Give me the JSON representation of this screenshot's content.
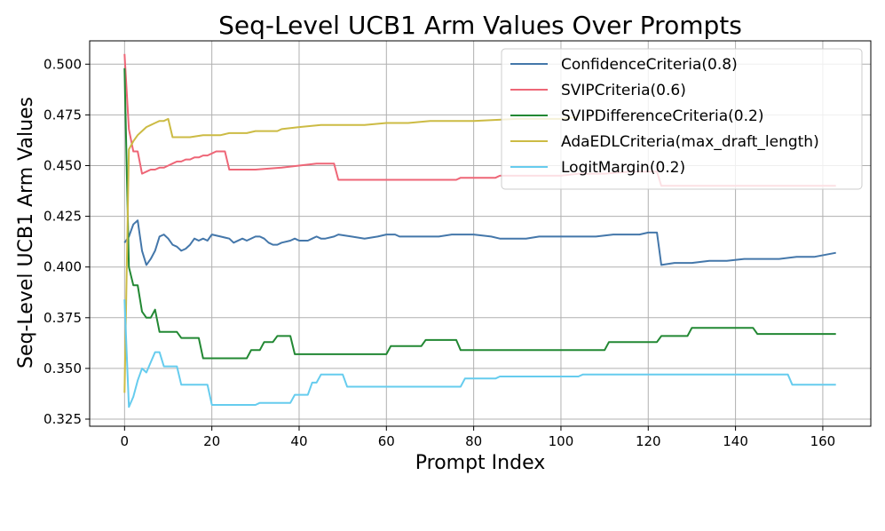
{
  "chart_data": {
    "type": "line",
    "title": "Seq-Level UCB1 Arm Values Over Prompts",
    "xlabel": "Prompt Index",
    "ylabel": "Seq-Level UCB1 Arm Values",
    "xlim": [
      -8,
      171
    ],
    "ylim": [
      0.3215,
      0.5115
    ],
    "xticks": [
      0,
      20,
      40,
      60,
      80,
      100,
      120,
      140,
      160
    ],
    "xtick_labels": [
      "0",
      "20",
      "40",
      "60",
      "80",
      "100",
      "120",
      "140",
      "160"
    ],
    "yticks": [
      0.325,
      0.35,
      0.375,
      0.4,
      0.425,
      0.45,
      0.475,
      0.5
    ],
    "ytick_labels": [
      "0.325",
      "0.350",
      "0.375",
      "0.400",
      "0.425",
      "0.450",
      "0.475",
      "0.500"
    ],
    "grid": true,
    "legend_position": "top-right",
    "series": [
      {
        "name": "ConfidenceCriteria(0.8)",
        "color": "#4477aa",
        "points": [
          [
            0,
            0.412
          ],
          [
            1,
            0.415
          ],
          [
            2,
            0.421
          ],
          [
            3,
            0.423
          ],
          [
            4,
            0.408
          ],
          [
            5,
            0.401
          ],
          [
            6,
            0.404
          ],
          [
            7,
            0.408
          ],
          [
            8,
            0.415
          ],
          [
            9,
            0.416
          ],
          [
            10,
            0.414
          ],
          [
            11,
            0.411
          ],
          [
            12,
            0.41
          ],
          [
            13,
            0.408
          ],
          [
            14,
            0.409
          ],
          [
            15,
            0.411
          ],
          [
            16,
            0.414
          ],
          [
            17,
            0.413
          ],
          [
            18,
            0.414
          ],
          [
            19,
            0.413
          ],
          [
            20,
            0.416
          ],
          [
            22,
            0.415
          ],
          [
            24,
            0.414
          ],
          [
            25,
            0.412
          ],
          [
            27,
            0.414
          ],
          [
            28,
            0.413
          ],
          [
            30,
            0.415
          ],
          [
            31,
            0.415
          ],
          [
            32,
            0.414
          ],
          [
            33,
            0.412
          ],
          [
            34,
            0.411
          ],
          [
            35,
            0.411
          ],
          [
            36,
            0.412
          ],
          [
            38,
            0.413
          ],
          [
            39,
            0.414
          ],
          [
            40,
            0.413
          ],
          [
            42,
            0.413
          ],
          [
            43,
            0.414
          ],
          [
            44,
            0.415
          ],
          [
            45,
            0.414
          ],
          [
            46,
            0.414
          ],
          [
            48,
            0.415
          ],
          [
            49,
            0.416
          ],
          [
            52,
            0.415
          ],
          [
            55,
            0.414
          ],
          [
            58,
            0.415
          ],
          [
            60,
            0.416
          ],
          [
            62,
            0.416
          ],
          [
            63,
            0.415
          ],
          [
            65,
            0.415
          ],
          [
            68,
            0.415
          ],
          [
            70,
            0.415
          ],
          [
            72,
            0.415
          ],
          [
            75,
            0.416
          ],
          [
            77,
            0.416
          ],
          [
            78,
            0.416
          ],
          [
            80,
            0.416
          ],
          [
            84,
            0.415
          ],
          [
            86,
            0.414
          ],
          [
            88,
            0.414
          ],
          [
            92,
            0.414
          ],
          [
            95,
            0.415
          ],
          [
            98,
            0.415
          ],
          [
            102,
            0.415
          ],
          [
            105,
            0.415
          ],
          [
            108,
            0.415
          ],
          [
            112,
            0.416
          ],
          [
            116,
            0.416
          ],
          [
            118,
            0.416
          ],
          [
            120,
            0.417
          ],
          [
            122,
            0.417
          ],
          [
            123,
            0.401
          ],
          [
            126,
            0.402
          ],
          [
            130,
            0.402
          ],
          [
            134,
            0.403
          ],
          [
            138,
            0.403
          ],
          [
            142,
            0.404
          ],
          [
            146,
            0.404
          ],
          [
            150,
            0.404
          ],
          [
            154,
            0.405
          ],
          [
            158,
            0.405
          ],
          [
            163,
            0.407
          ]
        ]
      },
      {
        "name": "SVIPCriteria(0.6)",
        "color": "#ee6677",
        "points": [
          [
            0,
            0.505
          ],
          [
            1,
            0.468
          ],
          [
            2,
            0.457
          ],
          [
            3,
            0.457
          ],
          [
            4,
            0.446
          ],
          [
            5,
            0.447
          ],
          [
            6,
            0.448
          ],
          [
            7,
            0.448
          ],
          [
            8,
            0.449
          ],
          [
            9,
            0.449
          ],
          [
            10,
            0.45
          ],
          [
            11,
            0.451
          ],
          [
            12,
            0.452
          ],
          [
            13,
            0.452
          ],
          [
            14,
            0.453
          ],
          [
            15,
            0.453
          ],
          [
            16,
            0.454
          ],
          [
            17,
            0.454
          ],
          [
            18,
            0.455
          ],
          [
            19,
            0.455
          ],
          [
            20,
            0.456
          ],
          [
            21,
            0.457
          ],
          [
            22,
            0.457
          ],
          [
            23,
            0.457
          ],
          [
            24,
            0.448
          ],
          [
            30,
            0.448
          ],
          [
            36,
            0.449
          ],
          [
            40,
            0.45
          ],
          [
            44,
            0.451
          ],
          [
            48,
            0.451
          ],
          [
            49,
            0.443
          ],
          [
            55,
            0.443
          ],
          [
            60,
            0.443
          ],
          [
            65,
            0.443
          ],
          [
            70,
            0.443
          ],
          [
            76,
            0.443
          ],
          [
            77,
            0.444
          ],
          [
            85,
            0.444
          ],
          [
            86,
            0.445
          ],
          [
            95,
            0.445
          ],
          [
            100,
            0.445
          ],
          [
            104,
            0.446
          ],
          [
            110,
            0.446
          ],
          [
            116,
            0.447
          ],
          [
            120,
            0.447
          ],
          [
            122,
            0.447
          ],
          [
            123,
            0.44
          ],
          [
            130,
            0.44
          ],
          [
            140,
            0.44
          ],
          [
            150,
            0.44
          ],
          [
            163,
            0.44
          ]
        ]
      },
      {
        "name": "SVIPDifferenceCriteria(0.2)",
        "color": "#228833",
        "points": [
          [
            0,
            0.498
          ],
          [
            1,
            0.4
          ],
          [
            2,
            0.391
          ],
          [
            3,
            0.391
          ],
          [
            4,
            0.378
          ],
          [
            5,
            0.375
          ],
          [
            6,
            0.375
          ],
          [
            7,
            0.379
          ],
          [
            8,
            0.368
          ],
          [
            12,
            0.368
          ],
          [
            13,
            0.365
          ],
          [
            17,
            0.365
          ],
          [
            18,
            0.355
          ],
          [
            28,
            0.355
          ],
          [
            29,
            0.359
          ],
          [
            31,
            0.359
          ],
          [
            32,
            0.363
          ],
          [
            34,
            0.363
          ],
          [
            35,
            0.366
          ],
          [
            38,
            0.366
          ],
          [
            39,
            0.357
          ],
          [
            60,
            0.357
          ],
          [
            61,
            0.361
          ],
          [
            68,
            0.361
          ],
          [
            69,
            0.364
          ],
          [
            76,
            0.364
          ],
          [
            77,
            0.359
          ],
          [
            110,
            0.359
          ],
          [
            111,
            0.363
          ],
          [
            122,
            0.363
          ],
          [
            123,
            0.366
          ],
          [
            129,
            0.366
          ],
          [
            130,
            0.37
          ],
          [
            144,
            0.37
          ],
          [
            145,
            0.367
          ],
          [
            163,
            0.367
          ]
        ]
      },
      {
        "name": "AdaEDLCriteria(max_draft_length)",
        "color": "#ccbb44",
        "points": [
          [
            0,
            0.338
          ],
          [
            1,
            0.458
          ],
          [
            2,
            0.462
          ],
          [
            3,
            0.465
          ],
          [
            4,
            0.467
          ],
          [
            5,
            0.469
          ],
          [
            6,
            0.47
          ],
          [
            7,
            0.471
          ],
          [
            8,
            0.472
          ],
          [
            9,
            0.472
          ],
          [
            10,
            0.473
          ],
          [
            11,
            0.464
          ],
          [
            15,
            0.464
          ],
          [
            18,
            0.465
          ],
          [
            22,
            0.465
          ],
          [
            24,
            0.466
          ],
          [
            28,
            0.466
          ],
          [
            30,
            0.467
          ],
          [
            35,
            0.467
          ],
          [
            36,
            0.468
          ],
          [
            40,
            0.469
          ],
          [
            45,
            0.47
          ],
          [
            50,
            0.47
          ],
          [
            55,
            0.47
          ],
          [
            60,
            0.471
          ],
          [
            65,
            0.471
          ],
          [
            70,
            0.472
          ],
          [
            80,
            0.472
          ],
          [
            90,
            0.473
          ],
          [
            100,
            0.473
          ],
          [
            104,
            0.474
          ]
        ]
      },
      {
        "name": "LogitMargin(0.2)",
        "color": "#66ccee",
        "points": [
          [
            0,
            0.384
          ],
          [
            1,
            0.331
          ],
          [
            2,
            0.336
          ],
          [
            3,
            0.344
          ],
          [
            4,
            0.35
          ],
          [
            5,
            0.348
          ],
          [
            6,
            0.353
          ],
          [
            7,
            0.358
          ],
          [
            8,
            0.358
          ],
          [
            9,
            0.351
          ],
          [
            12,
            0.351
          ],
          [
            13,
            0.342
          ],
          [
            19,
            0.342
          ],
          [
            20,
            0.332
          ],
          [
            30,
            0.332
          ],
          [
            31,
            0.333
          ],
          [
            38,
            0.333
          ],
          [
            39,
            0.337
          ],
          [
            42,
            0.337
          ],
          [
            43,
            0.343
          ],
          [
            44,
            0.343
          ],
          [
            45,
            0.347
          ],
          [
            50,
            0.347
          ],
          [
            51,
            0.341
          ],
          [
            77,
            0.341
          ],
          [
            78,
            0.345
          ],
          [
            85,
            0.345
          ],
          [
            86,
            0.346
          ],
          [
            104,
            0.346
          ],
          [
            105,
            0.347
          ],
          [
            152,
            0.347
          ],
          [
            153,
            0.342
          ],
          [
            163,
            0.342
          ]
        ]
      }
    ]
  }
}
